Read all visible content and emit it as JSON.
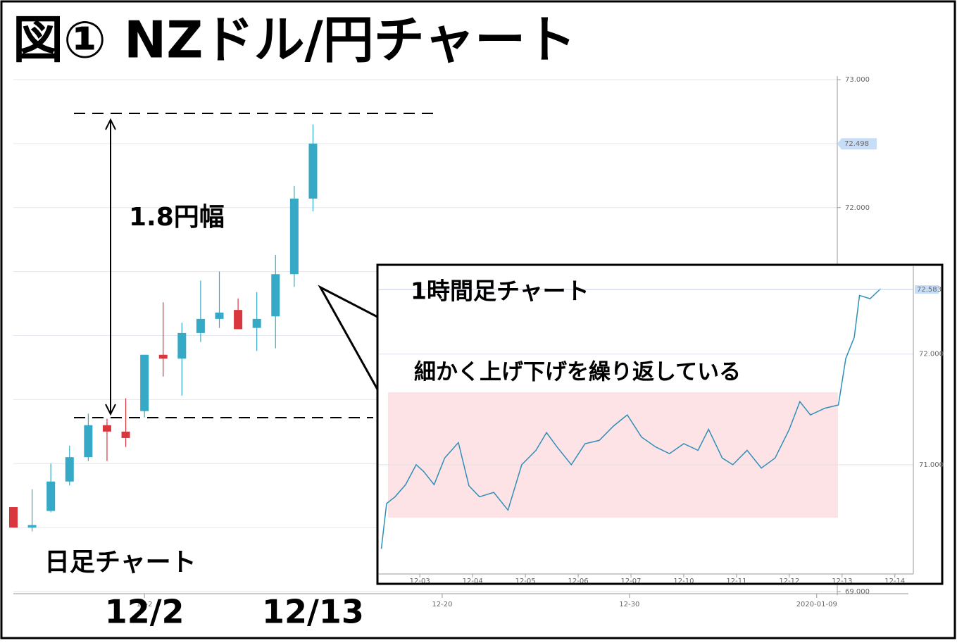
{
  "title": "図① NZドル/円チャート",
  "chart_data": [
    {
      "type": "candlestick",
      "caption": "日足チャート",
      "range_label": "1.8円幅",
      "categories": [
        null,
        null,
        null,
        null,
        null,
        null,
        null,
        "12/2",
        null,
        null,
        null,
        null,
        null,
        null,
        null,
        null,
        "12/13"
      ],
      "open": [
        69.66,
        69.5,
        69.63,
        69.86,
        70.05,
        70.3,
        70.25,
        70.41,
        70.85,
        70.82,
        71.02,
        71.13,
        71.2,
        71.06,
        71.15,
        71.48,
        72.07
      ],
      "high": [
        69.66,
        69.8,
        70.0,
        70.14,
        70.39,
        70.35,
        70.51,
        70.85,
        71.26,
        71.1,
        71.43,
        71.5,
        71.29,
        71.34,
        71.63,
        72.17,
        72.65
      ],
      "low": [
        69.5,
        69.47,
        69.62,
        69.83,
        70.02,
        70.02,
        70.13,
        70.36,
        70.68,
        70.53,
        70.95,
        71.06,
        71.05,
        70.88,
        70.9,
        71.38,
        71.97
      ],
      "close": [
        69.5,
        69.52,
        69.86,
        70.05,
        70.3,
        70.25,
        70.2,
        70.85,
        70.82,
        71.02,
        71.13,
        71.18,
        71.05,
        71.13,
        71.48,
        72.07,
        72.5
      ],
      "up_color": "#35a9c6",
      "down_color": "#d9363e",
      "xlim": [
        0,
        44
      ],
      "xticks": [
        {
          "value": 7,
          "label": "12-2"
        },
        {
          "value": 22.9,
          "label": "12-20"
        },
        {
          "value": 32.9,
          "label": "12-30"
        },
        {
          "value": 42.9,
          "label": "2020-01-09"
        }
      ],
      "ylim": [
        69,
        73
      ],
      "yticks": [
        {
          "value": 69,
          "label": "69.000"
        },
        {
          "value": 72,
          "label": "72.000"
        },
        {
          "value": 73,
          "label": "73.000"
        }
      ],
      "grid_lines": [
        69.5,
        70,
        70.5,
        71,
        71.5,
        72.5
      ],
      "price_tag": 72.498
    },
    {
      "type": "line",
      "caption": "1時間足チャート",
      "annotation": "細かく上げ下げを繰り返している",
      "x": [
        -0.73,
        -0.63,
        -0.47,
        -0.27,
        -0.07,
        0.07,
        0.27,
        0.47,
        0.73,
        0.93,
        1.13,
        1.4,
        1.67,
        1.93,
        2.2,
        2.4,
        2.6,
        2.87,
        3.13,
        3.4,
        3.67,
        3.93,
        4.2,
        4.47,
        4.73,
        5.0,
        5.27,
        5.47,
        5.73,
        5.93,
        6.2,
        6.47,
        6.73,
        7.0,
        7.2,
        7.4,
        7.67,
        7.93,
        8.07,
        8.23,
        8.33,
        8.53,
        8.73
      ],
      "values": [
        70.24,
        70.65,
        70.71,
        70.82,
        71.0,
        70.94,
        70.82,
        71.06,
        71.2,
        70.81,
        70.71,
        70.75,
        70.59,
        71.0,
        71.13,
        71.29,
        71.16,
        71.0,
        71.19,
        71.22,
        71.35,
        71.45,
        71.25,
        71.16,
        71.1,
        71.19,
        71.13,
        71.32,
        71.06,
        71.0,
        71.13,
        70.97,
        71.06,
        71.32,
        71.57,
        71.45,
        71.51,
        71.54,
        71.96,
        72.15,
        72.53,
        72.5,
        72.59
      ],
      "color": "#2f8fb8",
      "xlim": [
        -0.75,
        9.35
      ],
      "xticks": [
        {
          "value": 0,
          "label": "12-03"
        },
        {
          "value": 1,
          "label": "12-04"
        },
        {
          "value": 2,
          "label": "12-05"
        },
        {
          "value": 3,
          "label": "12-06"
        },
        {
          "value": 4,
          "label": "12-07"
        },
        {
          "value": 5,
          "label": "12-10"
        },
        {
          "value": 6,
          "label": "12-11"
        },
        {
          "value": 7,
          "label": "12-12"
        },
        {
          "value": 8,
          "label": "12-13"
        },
        {
          "value": 9,
          "label": "12-14"
        }
      ],
      "ylim": [
        69.93,
        72.8
      ],
      "yticks": [
        {
          "value": 71,
          "label": "71.000"
        },
        {
          "value": 72,
          "label": "72.000"
        }
      ],
      "price_tag": 72.583
    }
  ]
}
